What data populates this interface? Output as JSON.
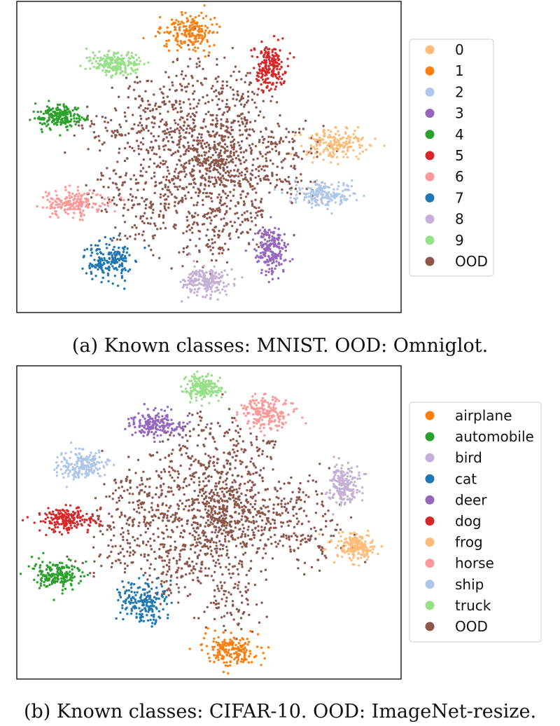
{
  "chart_data": [
    {
      "type": "scatter",
      "title": "",
      "xlabel": "",
      "ylabel": "",
      "caption": "(a) Known classes: MNIST. OOD: Omniglot.",
      "legend_placement": "right-outside",
      "grid": false,
      "series": [
        {
          "name": "0",
          "color": "#ffbb78",
          "center": [
            83,
            54
          ],
          "spread": [
            8,
            5
          ],
          "n": 190
        },
        {
          "name": "1",
          "color": "#ff7f0e",
          "center": [
            45,
            90
          ],
          "spread": [
            7,
            6
          ],
          "n": 190
        },
        {
          "name": "2",
          "color": "#aec7e8",
          "center": [
            80,
            38
          ],
          "spread": [
            8,
            4
          ],
          "n": 190
        },
        {
          "name": "3",
          "color": "#9467bd",
          "center": [
            66,
            20
          ],
          "spread": [
            4,
            8
          ],
          "n": 190
        },
        {
          "name": "4",
          "color": "#2ca02c",
          "center": [
            11,
            63
          ],
          "spread": [
            7,
            4
          ],
          "n": 190
        },
        {
          "name": "5",
          "color": "#d62728",
          "center": [
            66,
            79
          ],
          "spread": [
            4,
            7
          ],
          "n": 190
        },
        {
          "name": "6",
          "color": "#ff9896",
          "center": [
            15,
            35
          ],
          "spread": [
            8,
            4
          ],
          "n": 190
        },
        {
          "name": "7",
          "color": "#1f77b4",
          "center": [
            24,
            17
          ],
          "spread": [
            6,
            6
          ],
          "n": 190
        },
        {
          "name": "8",
          "color": "#c5b0d5",
          "center": [
            49,
            10
          ],
          "spread": [
            6,
            5
          ],
          "n": 190
        },
        {
          "name": "9",
          "color": "#98df8a",
          "center": [
            26,
            80
          ],
          "spread": [
            7,
            4
          ],
          "n": 190
        },
        {
          "name": "OOD",
          "color": "#8c564b",
          "center": [
            50,
            50
          ],
          "spread": [
            22,
            20
          ],
          "n": 1500
        }
      ]
    },
    {
      "type": "scatter",
      "title": "",
      "xlabel": "",
      "ylabel": "",
      "caption": "(b) Known classes: CIFAR-10. OOD: ImageNet-resize.",
      "legend_placement": "right-outside",
      "grid": false,
      "series": [
        {
          "name": "airplane",
          "color": "#ff7f0e",
          "center": [
            56,
            9
          ],
          "spread": [
            7,
            5
          ],
          "n": 190
        },
        {
          "name": "automobile",
          "color": "#2ca02c",
          "center": [
            10,
            33
          ],
          "spread": [
            6,
            5
          ],
          "n": 190
        },
        {
          "name": "bird",
          "color": "#c5b0d5",
          "center": [
            85,
            62
          ],
          "spread": [
            4,
            6
          ],
          "n": 190
        },
        {
          "name": "cat",
          "color": "#1f77b4",
          "center": [
            33,
            24
          ],
          "spread": [
            6,
            6
          ],
          "n": 190
        },
        {
          "name": "deer",
          "color": "#9467bd",
          "center": [
            36,
            81
          ],
          "spread": [
            7,
            4
          ],
          "n": 190
        },
        {
          "name": "dog",
          "color": "#d62728",
          "center": [
            13,
            51
          ],
          "spread": [
            7,
            4
          ],
          "n": 190
        },
        {
          "name": "frog",
          "color": "#ffbb78",
          "center": [
            88,
            42
          ],
          "spread": [
            6,
            4
          ],
          "n": 190
        },
        {
          "name": "horse",
          "color": "#ff9896",
          "center": [
            65,
            85
          ],
          "spread": [
            6,
            6
          ],
          "n": 190
        },
        {
          "name": "ship",
          "color": "#aec7e8",
          "center": [
            17,
            68
          ],
          "spread": [
            6,
            5
          ],
          "n": 190
        },
        {
          "name": "truck",
          "color": "#98df8a",
          "center": [
            49,
            93
          ],
          "spread": [
            5,
            4
          ],
          "n": 190
        },
        {
          "name": "OOD",
          "color": "#8c564b",
          "center": [
            55,
            50
          ],
          "spread": [
            24,
            20
          ],
          "n": 1500
        }
      ]
    }
  ]
}
